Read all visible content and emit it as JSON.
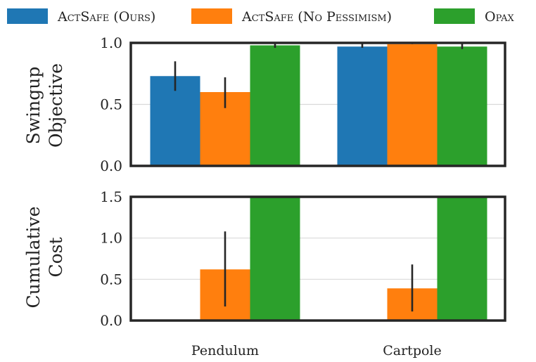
{
  "chart_data": [
    {
      "type": "bar",
      "ylabel": [
        "Swingup",
        "Objective"
      ],
      "categories": [
        "Pendulum",
        "Cartpole"
      ],
      "ylim": [
        0,
        1.0
      ],
      "yticks": [
        "0.0",
        "0.5",
        "1.0"
      ],
      "grid": true,
      "series": [
        {
          "name": "ActSafe (Ours)",
          "values": [
            0.73,
            0.97
          ],
          "errors": [
            [
              0.61,
              0.85
            ],
            [
              0.96,
              1.0
            ]
          ]
        },
        {
          "name": "ActSafe (No Pessimism)",
          "values": [
            0.6,
            0.99
          ],
          "errors": [
            [
              0.47,
              0.72
            ],
            [
              0.99,
              1.0
            ]
          ]
        },
        {
          "name": "Opax",
          "values": [
            0.98,
            0.97
          ],
          "errors": [
            [
              0.96,
              1.0
            ],
            [
              0.95,
              1.0
            ]
          ]
        }
      ]
    },
    {
      "type": "bar",
      "ylabel": [
        "Cumulative",
        "Cost"
      ],
      "categories": [
        "Pendulum",
        "Cartpole"
      ],
      "ylim": [
        0,
        1.5
      ],
      "yticks": [
        "0.0",
        "0.5",
        "1.0",
        "1.5"
      ],
      "grid": true,
      "series": [
        {
          "name": "ActSafe (Ours)",
          "values": [
            0.0,
            0.0
          ],
          "errors": [
            null,
            null
          ]
        },
        {
          "name": "ActSafe (No Pessimism)",
          "values": [
            0.62,
            0.39
          ],
          "errors": [
            [
              0.17,
              1.08
            ],
            [
              0.11,
              0.68
            ]
          ]
        },
        {
          "name": "Opax",
          "values": [
            1.5,
            1.5
          ],
          "errors": [
            null,
            null
          ]
        }
      ]
    }
  ],
  "legend": {
    "placement": "top",
    "entries": [
      {
        "label": "ActSafe (Ours)",
        "color": "#1f77b4"
      },
      {
        "label": "ActSafe (No Pessimism)",
        "color": "#ff7f0e"
      },
      {
        "label": "Opax",
        "color": "#2ca02c"
      }
    ]
  },
  "x_categories": [
    "Pendulum",
    "Cartpole"
  ],
  "colors": [
    "#1f77b4",
    "#ff7f0e",
    "#2ca02c"
  ]
}
